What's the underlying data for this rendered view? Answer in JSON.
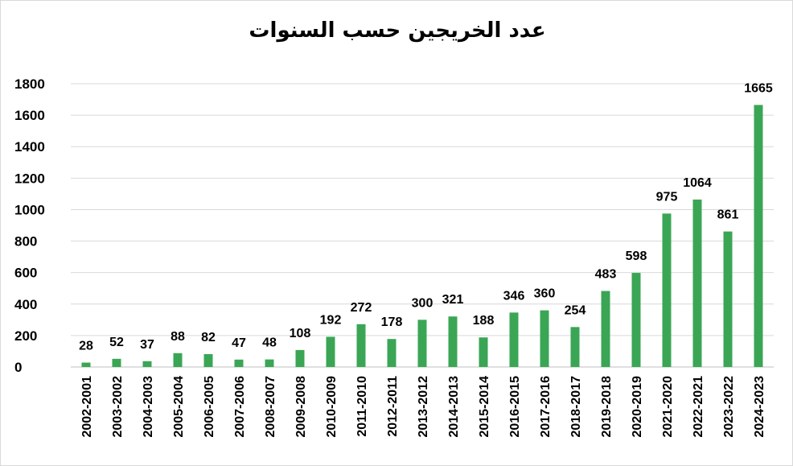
{
  "chart_data": {
    "type": "bar",
    "title": "عدد الخريجين حسب السنوات",
    "categories": [
      "2002-2001",
      "2003-2002",
      "2004-2003",
      "2005-2004",
      "2006-2005",
      "2007-2006",
      "2008-2007",
      "2009-2008",
      "2010-2009",
      "2011-2010",
      "2012-2011",
      "2013-2012",
      "2014-2013",
      "2015-2014",
      "2016-2015",
      "2017-2016",
      "2018-2017",
      "2019-2018",
      "2020-2019",
      "2021-2020",
      "2022-2021",
      "2023-2022",
      "2024-2023"
    ],
    "values": [
      28,
      52,
      37,
      88,
      82,
      47,
      48,
      108,
      192,
      272,
      178,
      300,
      321,
      188,
      346,
      360,
      254,
      483,
      598,
      975,
      1064,
      861,
      1665
    ],
    "ylim": [
      0,
      1800
    ],
    "yticks": [
      0,
      200,
      400,
      600,
      800,
      1000,
      1200,
      1400,
      1600,
      1800
    ],
    "grid": true,
    "legend": "none",
    "colors": {
      "bar": "#3aa655",
      "grid": "#d9d9d9",
      "axis": "#bfbfbf"
    }
  }
}
